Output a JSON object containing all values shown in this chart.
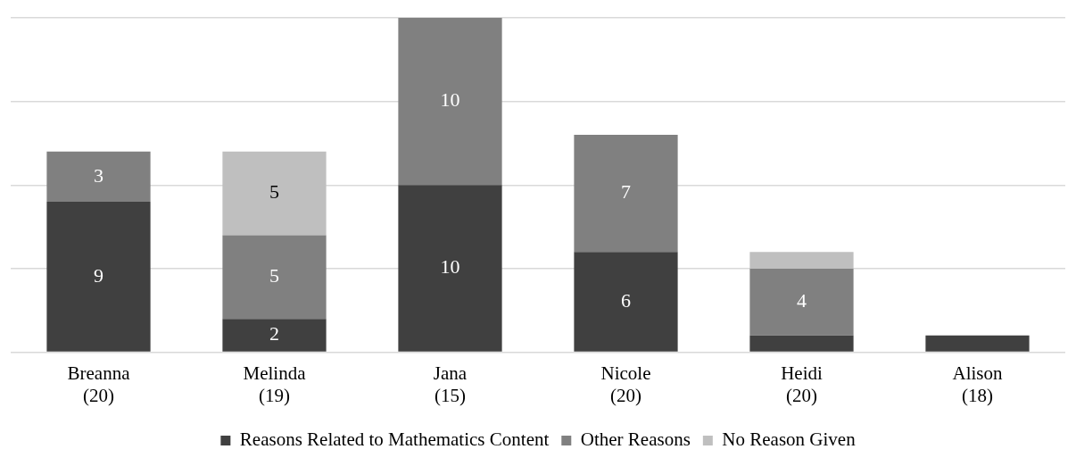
{
  "chart_data": {
    "type": "bar",
    "stacked": true,
    "categories": [
      "Breanna\n(20)",
      "Melinda\n(19)",
      "Jana\n(15)",
      "Nicole\n(20)",
      "Heidi\n(20)",
      "Alison\n(18)"
    ],
    "series": [
      {
        "name": "Reasons Related to Mathematics Content",
        "color": "#404040",
        "values": [
          9,
          2,
          10,
          6,
          1,
          1
        ],
        "value_labels": [
          "9",
          "2",
          "10",
          "6",
          null,
          null
        ]
      },
      {
        "name": "Other Reasons",
        "color": "#808080",
        "values": [
          3,
          5,
          10,
          7,
          4,
          0
        ],
        "value_labels": [
          "3",
          "5",
          "10",
          "7",
          "4",
          null
        ]
      },
      {
        "name": "No Reason Given",
        "color": "#bfbfbf",
        "values": [
          0,
          5,
          0,
          0,
          1,
          0
        ],
        "value_labels": [
          null,
          "5",
          null,
          null,
          null,
          null
        ]
      }
    ],
    "ylim": [
      0,
      20
    ],
    "yticks": [
      {
        "value": 0,
        "label": null
      },
      {
        "value": 5,
        "label": null
      },
      {
        "value": 10,
        "label": null
      },
      {
        "value": 15,
        "label": null
      },
      {
        "value": 20,
        "label": null
      }
    ],
    "tick_labels": "x",
    "grid": "y",
    "legend": "bottom"
  }
}
